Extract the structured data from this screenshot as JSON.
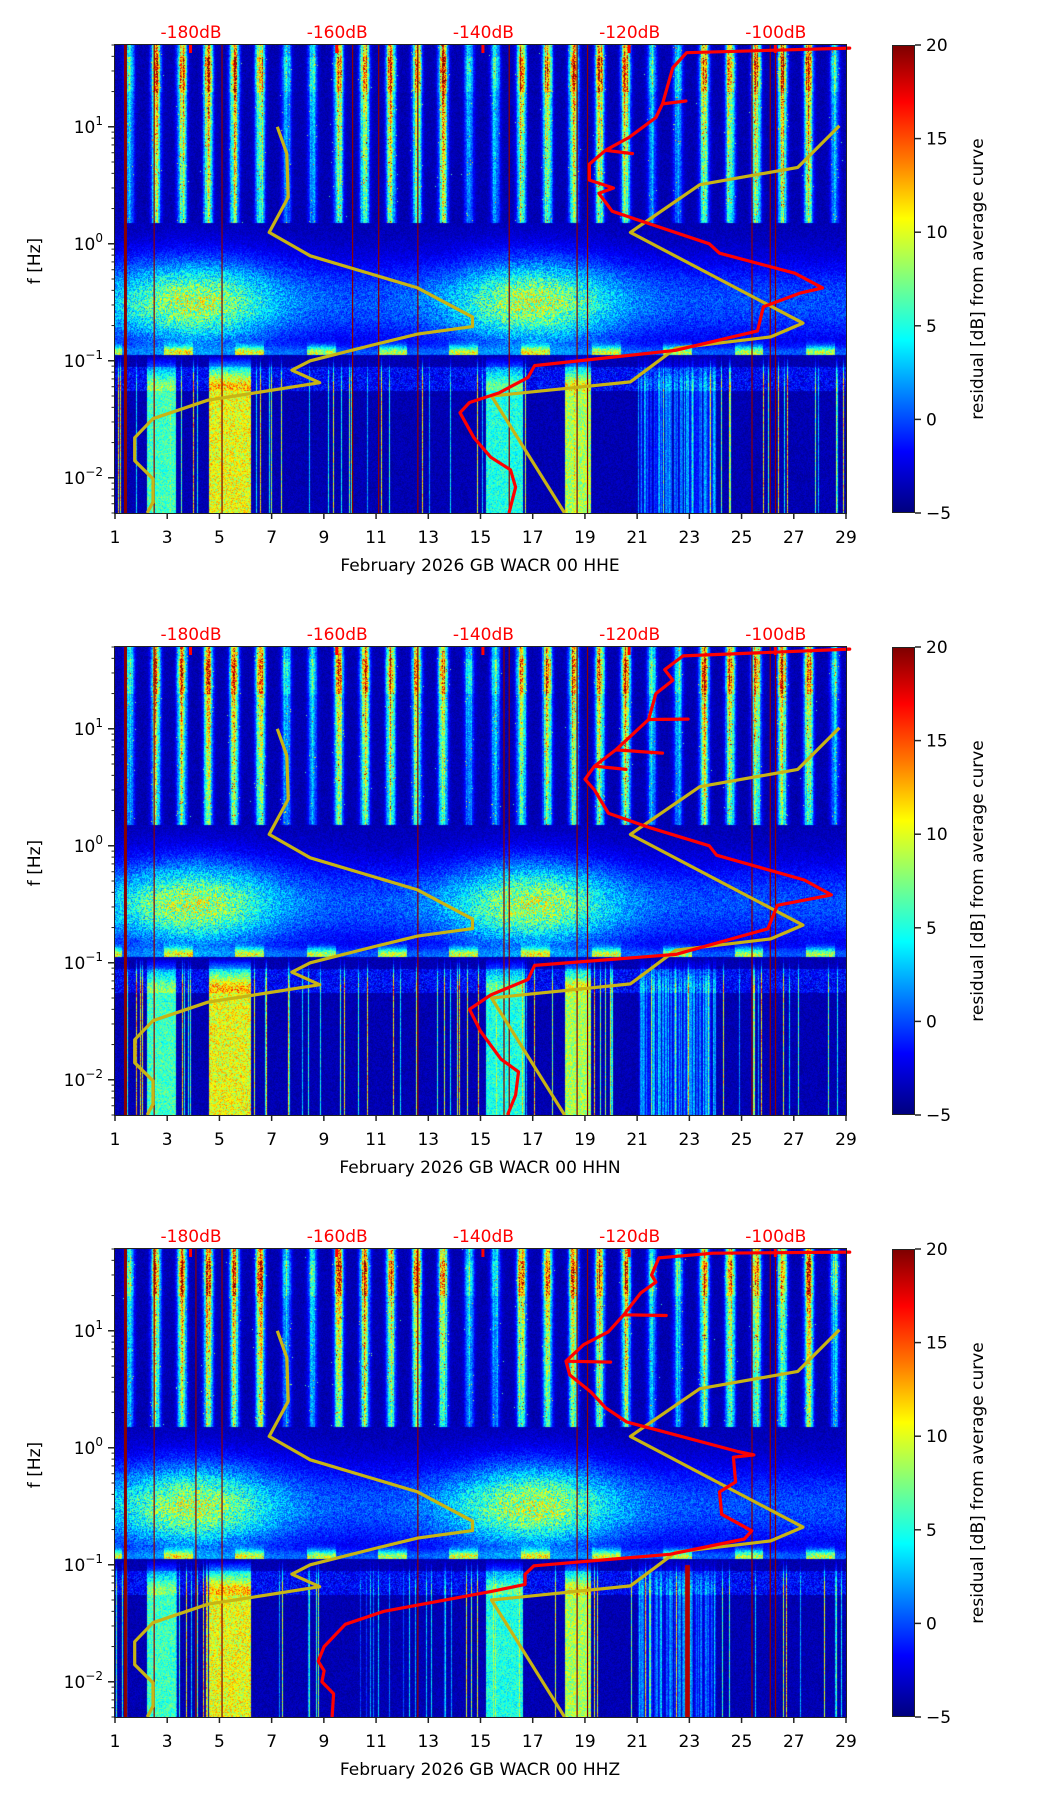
{
  "colors": {
    "power_curve": "#ff0000",
    "noise_model": "#c8b414",
    "db_tick_text": "#ff0000",
    "outage_line": "#8b0000"
  },
  "chart_data": [
    {
      "type": "heatmap",
      "title": "",
      "xlabel": "February 2026 GB WACR 00 HHE",
      "ylabel": "f [Hz]",
      "x_ticks": [
        1,
        3,
        5,
        7,
        9,
        11,
        13,
        15,
        17,
        19,
        21,
        23,
        25,
        27,
        29
      ],
      "x_range": [
        1,
        29
      ],
      "y_scale": "log",
      "y_range": [
        0.005,
        50
      ],
      "y_ticks": [
        {
          "value": 10,
          "label": "10",
          "exp": "1"
        },
        {
          "value": 1,
          "label": "10",
          "exp": "0"
        },
        {
          "value": 0.1,
          "label": "10",
          "exp": "−1"
        },
        {
          "value": 0.01,
          "label": "10",
          "exp": "−2"
        }
      ],
      "top_axis": {
        "ticks": [
          -180,
          -160,
          -140,
          -120,
          -100
        ],
        "labels": [
          "-180dB",
          "-160dB",
          "-140dB",
          "-120dB",
          "-100dB"
        ],
        "range": [
          -190.4,
          -90.4
        ]
      },
      "colorbar": {
        "label": "residual [dB] from average curve",
        "range": [
          -5,
          20
        ],
        "ticks": [
          20,
          15,
          10,
          5,
          0,
          -5
        ],
        "tick_labels": [
          "20",
          "15",
          "10",
          "5",
          "0",
          "−5"
        ],
        "cmap": "jet"
      },
      "outage_days": [
        1.4,
        2.5,
        5.1,
        10.1,
        11.1,
        12.6,
        16.1,
        18.7,
        19.1,
        25.4,
        26.1,
        26.3
      ],
      "red_curve": {
        "name": "average PSD",
        "points_db_hz": [
          [
            -89.9,
            47
          ],
          [
            -112.2,
            43
          ],
          [
            -114.1,
            32
          ],
          [
            -115.5,
            15.7
          ],
          [
            -112.3,
            16.6
          ],
          [
            -115.5,
            15.7
          ],
          [
            -116.4,
            12
          ],
          [
            -120.1,
            8.1
          ],
          [
            -123.3,
            6.3
          ],
          [
            -119.6,
            5.9
          ],
          [
            -123.3,
            6.3
          ],
          [
            -125.5,
            4.8
          ],
          [
            -125.5,
            3.5
          ],
          [
            -122.2,
            3.0
          ],
          [
            -124.2,
            2.7
          ],
          [
            -122.4,
            1.9
          ],
          [
            -117.4,
            1.49
          ],
          [
            -109.1,
            1.0
          ],
          [
            -107.7,
            0.83
          ],
          [
            -97.4,
            0.56
          ],
          [
            -93.6,
            0.42
          ],
          [
            -96.6,
            0.38
          ],
          [
            -101.7,
            0.29
          ],
          [
            -102.5,
            0.18
          ],
          [
            -113.7,
            0.123
          ],
          [
            -133.0,
            0.091
          ],
          [
            -133.9,
            0.072
          ],
          [
            -137.9,
            0.053
          ],
          [
            -141.9,
            0.044
          ],
          [
            -143.2,
            0.036
          ],
          [
            -141.3,
            0.022
          ],
          [
            -139.0,
            0.015
          ],
          [
            -136.3,
            0.0117
          ],
          [
            -135.6,
            0.0083
          ],
          [
            -136.5,
            0.005
          ]
        ]
      },
      "nlnm": [
        [
          -168.2,
          10
        ],
        [
          -166.9,
          5.9
        ],
        [
          -166.7,
          2.5
        ],
        [
          -169.3,
          1.25
        ],
        [
          -163.7,
          0.79
        ],
        [
          -149.0,
          0.42
        ],
        [
          -141.5,
          0.236
        ],
        [
          -141.5,
          0.196
        ],
        [
          -149.0,
          0.169
        ],
        [
          -154.6,
          0.139
        ],
        [
          -163.7,
          0.1
        ],
        [
          -166.2,
          0.083
        ],
        [
          -162.4,
          0.065
        ],
        [
          -177.7,
          0.046
        ],
        [
          -185.2,
          0.032
        ],
        [
          -187.7,
          0.022
        ],
        [
          -187.7,
          0.014
        ],
        [
          -185.2,
          0.0098
        ],
        [
          -185.2,
          0.0062
        ],
        [
          -186.0,
          0.005
        ]
      ],
      "nhnm": [
        [
          -91.3,
          10.2
        ],
        [
          -97.0,
          4.5
        ],
        [
          -110.4,
          3.2
        ],
        [
          -119.9,
          1.25
        ],
        [
          -96.3,
          0.21
        ],
        [
          -100.7,
          0.16
        ],
        [
          -113.7,
          0.128
        ],
        [
          -119.9,
          0.066
        ],
        [
          -138.9,
          0.05
        ],
        [
          -128.9,
          0.005
        ]
      ],
      "streak_days": []
    },
    {
      "type": "heatmap",
      "title": "",
      "xlabel": "February 2026 GB WACR 00 HHN",
      "ylabel": "f [Hz]",
      "x_ticks": [
        1,
        3,
        5,
        7,
        9,
        11,
        13,
        15,
        17,
        19,
        21,
        23,
        25,
        27,
        29
      ],
      "x_range": [
        1,
        29
      ],
      "y_scale": "log",
      "y_range": [
        0.005,
        50
      ],
      "y_ticks": [
        {
          "value": 10,
          "label": "10",
          "exp": "1"
        },
        {
          "value": 1,
          "label": "10",
          "exp": "0"
        },
        {
          "value": 0.1,
          "label": "10",
          "exp": "−1"
        },
        {
          "value": 0.01,
          "label": "10",
          "exp": "−2"
        }
      ],
      "top_axis": {
        "ticks": [
          -180,
          -160,
          -140,
          -120,
          -100
        ],
        "labels": [
          "-180dB",
          "-160dB",
          "-140dB",
          "-120dB",
          "-100dB"
        ],
        "range": [
          -190.4,
          -90.4
        ]
      },
      "colorbar": {
        "label": "residual [dB] from average curve",
        "range": [
          -5,
          20
        ],
        "ticks": [
          20,
          15,
          10,
          5,
          0,
          -5
        ],
        "tick_labels": [
          "20",
          "15",
          "10",
          "5",
          "0",
          "−5"
        ],
        "cmap": "jet"
      },
      "outage_days": [
        1.4,
        2.5,
        12.6,
        15.9,
        16.1,
        18.7,
        19.1,
        25.4,
        26.1,
        26.3
      ],
      "red_curve": {
        "name": "average PSD",
        "points_db_hz": [
          [
            -89.9,
            48
          ],
          [
            -112.7,
            42
          ],
          [
            -115.2,
            32
          ],
          [
            -114.1,
            26
          ],
          [
            -116.4,
            20
          ],
          [
            -117.4,
            12
          ],
          [
            -112.0,
            12.1
          ],
          [
            -117.4,
            12
          ],
          [
            -121.9,
            6.6
          ],
          [
            -115.5,
            6.2
          ],
          [
            -121.9,
            6.6
          ],
          [
            -124.8,
            4.8
          ],
          [
            -120.5,
            4.5
          ],
          [
            -124.8,
            4.8
          ],
          [
            -126.1,
            3.7
          ],
          [
            -124.8,
            3.0
          ],
          [
            -122.9,
            1.9
          ],
          [
            -117.4,
            1.44
          ],
          [
            -109.1,
            1.0
          ],
          [
            -108.1,
            0.83
          ],
          [
            -96.1,
            0.51
          ],
          [
            -92.4,
            0.38
          ],
          [
            -99.8,
            0.31
          ],
          [
            -101.1,
            0.195
          ],
          [
            -113.7,
            0.118
          ],
          [
            -133.0,
            0.095
          ],
          [
            -133.9,
            0.072
          ],
          [
            -139.0,
            0.053
          ],
          [
            -141.9,
            0.04
          ],
          [
            -140.4,
            0.026
          ],
          [
            -137.6,
            0.015
          ],
          [
            -135.2,
            0.0117
          ],
          [
            -135.6,
            0.0074
          ],
          [
            -136.7,
            0.005
          ]
        ]
      },
      "nlnm": [
        [
          -168.2,
          10
        ],
        [
          -166.9,
          5.9
        ],
        [
          -166.7,
          2.5
        ],
        [
          -169.3,
          1.25
        ],
        [
          -163.7,
          0.79
        ],
        [
          -149.0,
          0.42
        ],
        [
          -141.5,
          0.236
        ],
        [
          -141.5,
          0.196
        ],
        [
          -149.0,
          0.169
        ],
        [
          -154.6,
          0.139
        ],
        [
          -163.7,
          0.1
        ],
        [
          -166.2,
          0.083
        ],
        [
          -162.4,
          0.065
        ],
        [
          -177.7,
          0.046
        ],
        [
          -185.2,
          0.032
        ],
        [
          -187.7,
          0.022
        ],
        [
          -187.7,
          0.014
        ],
        [
          -185.2,
          0.0098
        ],
        [
          -185.2,
          0.0062
        ],
        [
          -186.0,
          0.005
        ]
      ],
      "nhnm": [
        [
          -91.3,
          10.2
        ],
        [
          -97.0,
          4.5
        ],
        [
          -110.4,
          3.2
        ],
        [
          -119.9,
          1.25
        ],
        [
          -96.3,
          0.21
        ],
        [
          -100.7,
          0.16
        ],
        [
          -113.7,
          0.128
        ],
        [
          -119.9,
          0.066
        ],
        [
          -138.9,
          0.05
        ],
        [
          -128.9,
          0.005
        ]
      ],
      "streak_days": []
    },
    {
      "type": "heatmap",
      "title": "",
      "xlabel": "February 2026 GB WACR 00 HHZ",
      "ylabel": "f [Hz]",
      "x_ticks": [
        1,
        3,
        5,
        7,
        9,
        11,
        13,
        15,
        17,
        19,
        21,
        23,
        25,
        27,
        29
      ],
      "x_range": [
        1,
        29
      ],
      "y_scale": "log",
      "y_range": [
        0.005,
        50
      ],
      "y_ticks": [
        {
          "value": 10,
          "label": "10",
          "exp": "1"
        },
        {
          "value": 1,
          "label": "10",
          "exp": "0"
        },
        {
          "value": 0.1,
          "label": "10",
          "exp": "−1"
        },
        {
          "value": 0.01,
          "label": "10",
          "exp": "−2"
        }
      ],
      "top_axis": {
        "ticks": [
          -180,
          -160,
          -140,
          -120,
          -100
        ],
        "labels": [
          "-180dB",
          "-160dB",
          "-140dB",
          "-120dB",
          "-100dB"
        ],
        "range": [
          -190.4,
          -90.4
        ]
      },
      "colorbar": {
        "label": "residual [dB] from average curve",
        "range": [
          -5,
          20
        ],
        "ticks": [
          20,
          15,
          10,
          5,
          0,
          -5
        ],
        "tick_labels": [
          "20",
          "15",
          "10",
          "5",
          "0",
          "−5"
        ],
        "cmap": "jet"
      },
      "outage_days": [
        1.4,
        2.5,
        4.1,
        5.1,
        12.6,
        18.7,
        19.1,
        25.4,
        26.1,
        26.3
      ],
      "red_curve": {
        "name": "average PSD",
        "points_db_hz": [
          [
            -89.9,
            47
          ],
          [
            -108.6,
            46
          ],
          [
            -116.0,
            42
          ],
          [
            -117.0,
            30
          ],
          [
            -116.4,
            26
          ],
          [
            -118.5,
            21
          ],
          [
            -120.8,
            13.7
          ],
          [
            -115.0,
            13.5
          ],
          [
            -120.8,
            13.7
          ],
          [
            -122.9,
            9.8
          ],
          [
            -126.3,
            7.6
          ],
          [
            -128.7,
            5.5
          ],
          [
            -122.6,
            5.4
          ],
          [
            -128.7,
            5.5
          ],
          [
            -128.2,
            4.2
          ],
          [
            -125.3,
            3.0
          ],
          [
            -123.3,
            2.2
          ],
          [
            -120.4,
            1.66
          ],
          [
            -115.5,
            1.38
          ],
          [
            -105.2,
            0.93
          ],
          [
            -103.0,
            0.87
          ],
          [
            -105.8,
            0.83
          ],
          [
            -105.5,
            0.51
          ],
          [
            -107.7,
            0.42
          ],
          [
            -107.4,
            0.27
          ],
          [
            -103.3,
            0.195
          ],
          [
            -104.3,
            0.166
          ],
          [
            -114.5,
            0.123
          ],
          [
            -133.1,
            0.098
          ],
          [
            -134.3,
            0.083
          ],
          [
            -134.3,
            0.068
          ],
          [
            -139.0,
            0.059
          ],
          [
            -153.6,
            0.04
          ],
          [
            -158.9,
            0.031
          ],
          [
            -161.8,
            0.02
          ],
          [
            -162.6,
            0.015
          ],
          [
            -161.8,
            0.0124
          ],
          [
            -162.1,
            0.01
          ],
          [
            -160.5,
            0.0079
          ],
          [
            -160.7,
            0.005
          ]
        ]
      },
      "nlnm": [
        [
          -168.2,
          10
        ],
        [
          -166.9,
          5.9
        ],
        [
          -166.7,
          2.5
        ],
        [
          -169.3,
          1.25
        ],
        [
          -163.7,
          0.79
        ],
        [
          -149.0,
          0.42
        ],
        [
          -141.5,
          0.236
        ],
        [
          -141.5,
          0.196
        ],
        [
          -149.0,
          0.169
        ],
        [
          -154.6,
          0.139
        ],
        [
          -163.7,
          0.1
        ],
        [
          -166.2,
          0.083
        ],
        [
          -162.4,
          0.065
        ],
        [
          -177.7,
          0.046
        ],
        [
          -185.2,
          0.032
        ],
        [
          -187.7,
          0.022
        ],
        [
          -187.7,
          0.014
        ],
        [
          -185.2,
          0.0098
        ],
        [
          -185.2,
          0.0062
        ],
        [
          -186.0,
          0.005
        ]
      ],
      "nhnm": [
        [
          -91.3,
          10.2
        ],
        [
          -97.0,
          4.5
        ],
        [
          -110.4,
          3.2
        ],
        [
          -119.9,
          1.25
        ],
        [
          -96.3,
          0.21
        ],
        [
          -100.7,
          0.16
        ],
        [
          -113.7,
          0.128
        ],
        [
          -119.9,
          0.066
        ],
        [
          -138.9,
          0.05
        ],
        [
          -128.9,
          0.005
        ]
      ],
      "streak_days": [
        22.9
      ]
    }
  ]
}
